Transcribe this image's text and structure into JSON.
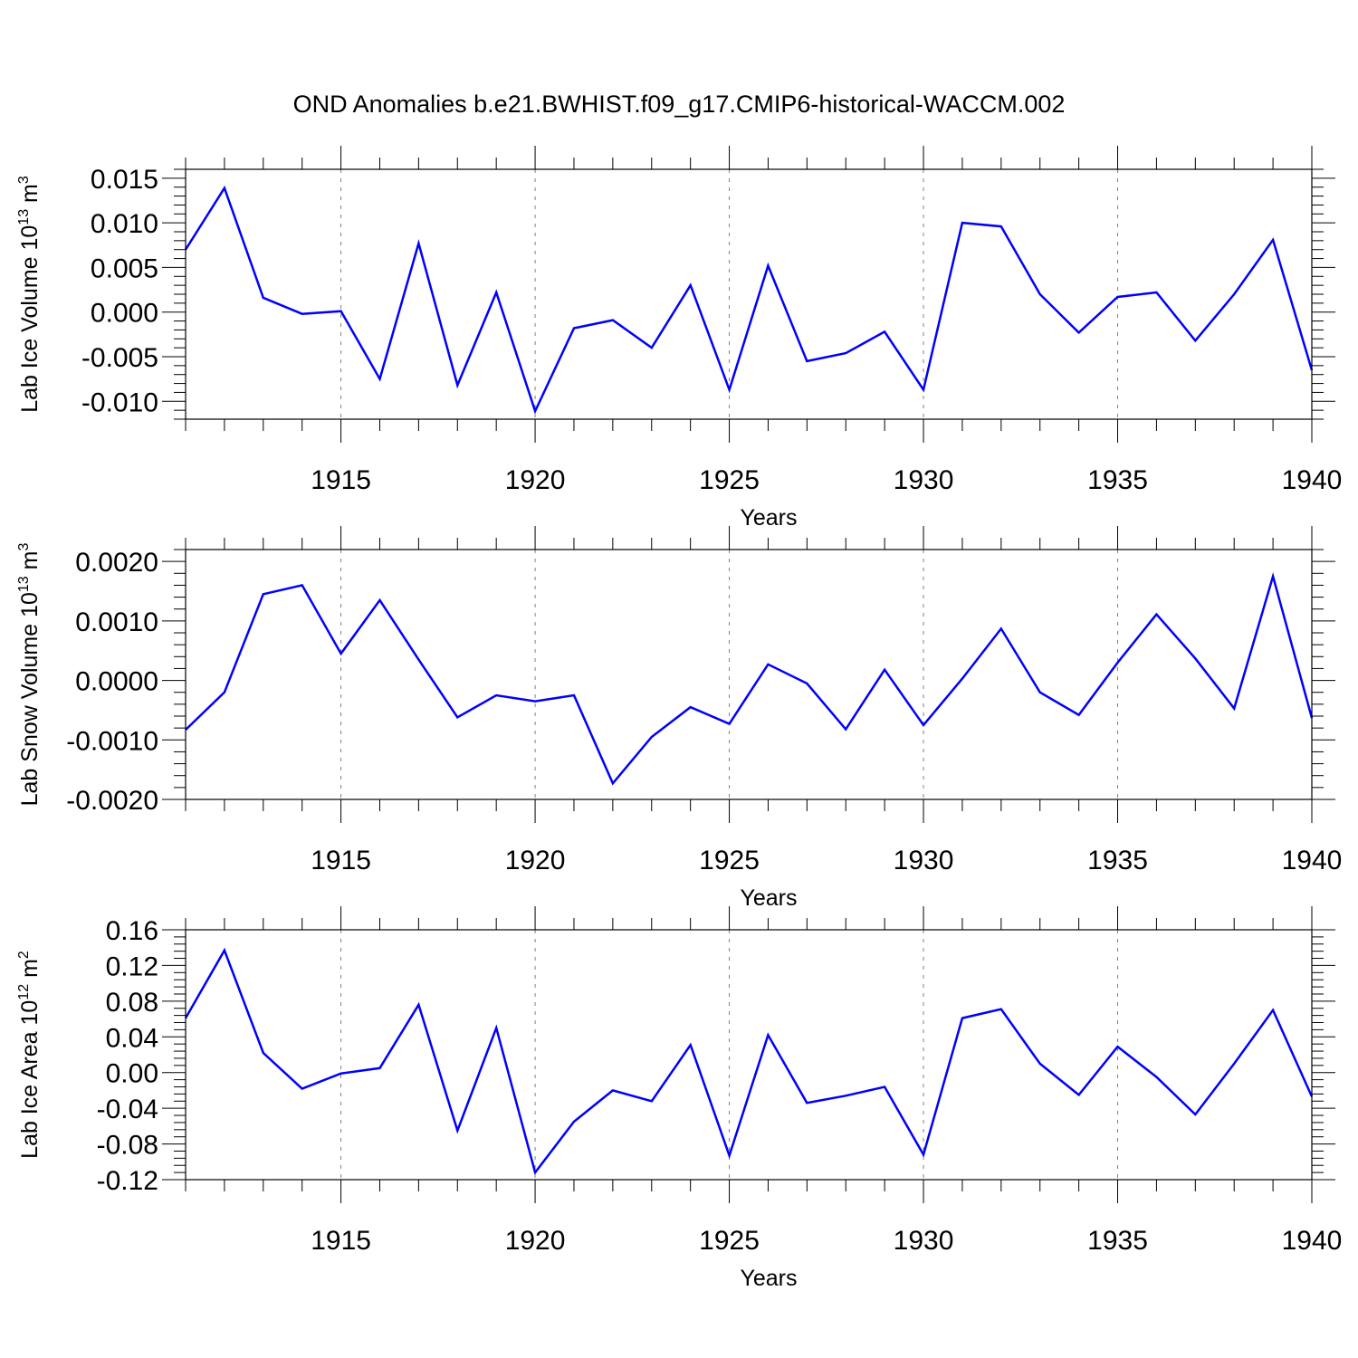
{
  "title": "OND Anomalies b.e21.BWHIST.f09_g17.CMIP6-historical-WACCM.002",
  "colors": {
    "series": "#0000ff",
    "axes": "#000000",
    "grid": "#808080"
  },
  "chart_data": [
    {
      "type": "line",
      "title": "OND Anomalies b.e21.BWHIST.f09_g17.CMIP6-historical-WACCM.002",
      "xlabel": "Years",
      "ylabel": {
        "text": "Lab Ice Volume 10",
        "exp": "13",
        "unit": " m",
        "unit_exp": "3"
      },
      "xlim": [
        1911,
        1940
      ],
      "ylim": [
        -0.012,
        0.016
      ],
      "xticks": [
        1915,
        1920,
        1925,
        1930,
        1935,
        1940
      ],
      "xtick_labels": [
        "1915",
        "1920",
        "1925",
        "1930",
        "1935",
        "1940"
      ],
      "yticks": [
        -0.01,
        -0.005,
        0.0,
        0.005,
        0.01,
        0.015
      ],
      "ytick_labels": [
        "-0.010",
        "-0.005",
        "0.000",
        "0.005",
        "0.010",
        "0.015"
      ],
      "grid": "x dashed",
      "x": [
        1911,
        1912,
        1913,
        1914,
        1915,
        1916,
        1917,
        1918,
        1919,
        1920,
        1921,
        1922,
        1923,
        1924,
        1925,
        1926,
        1927,
        1928,
        1929,
        1930,
        1931,
        1932,
        1933,
        1934,
        1935,
        1936,
        1937,
        1938,
        1939,
        1940
      ],
      "y": [
        0.007,
        0.0139,
        0.0016,
        -0.0002,
        0.0001,
        -0.0075,
        0.0077,
        -0.0082,
        0.0022,
        -0.0111,
        -0.0018,
        -0.0009,
        -0.004,
        0.003,
        -0.0087,
        0.0052,
        -0.0055,
        -0.0046,
        -0.0022,
        -0.0087,
        0.01,
        0.0096,
        0.002,
        -0.0023,
        0.0017,
        0.0022,
        -0.0032,
        0.002,
        0.0081,
        -0.0065
      ]
    },
    {
      "type": "line",
      "xlabel": "Years",
      "ylabel": {
        "text": "Lab Snow Volume 10",
        "exp": "13",
        "unit": " m",
        "unit_exp": "3"
      },
      "xlim": [
        1911,
        1940
      ],
      "ylim": [
        -0.002,
        0.0022
      ],
      "xticks": [
        1915,
        1920,
        1925,
        1930,
        1935,
        1940
      ],
      "xtick_labels": [
        "1915",
        "1920",
        "1925",
        "1930",
        "1935",
        "1940"
      ],
      "yticks": [
        -0.002,
        -0.001,
        0.0,
        0.001,
        0.002
      ],
      "ytick_labels": [
        "-0.0020",
        "-0.0010",
        "0.0000",
        "0.0010",
        "0.0020"
      ],
      "grid": "x dashed",
      "x": [
        1911,
        1912,
        1913,
        1914,
        1915,
        1916,
        1917,
        1918,
        1919,
        1920,
        1921,
        1922,
        1923,
        1924,
        1925,
        1926,
        1927,
        1928,
        1929,
        1930,
        1931,
        1932,
        1933,
        1934,
        1935,
        1936,
        1937,
        1938,
        1939,
        1940
      ],
      "y": [
        -0.00083,
        -0.0002,
        0.00145,
        0.0016,
        0.00045,
        0.00135,
        0.00035,
        -0.00062,
        -0.00025,
        -0.00035,
        -0.00025,
        -0.00173,
        -0.00095,
        -0.00045,
        -0.00073,
        0.00027,
        -5e-05,
        -0.00082,
        0.00018,
        -0.00075,
        3e-05,
        0.00087,
        -0.0002,
        -0.00058,
        0.0003,
        0.00111,
        0.00037,
        -0.00047,
        0.00175,
        -0.00063
      ]
    },
    {
      "type": "line",
      "xlabel": "Years",
      "ylabel": {
        "text": "Lab Ice Area 10",
        "exp": "12",
        "unit": " m",
        "unit_exp": "2"
      },
      "xlim": [
        1911,
        1940
      ],
      "ylim": [
        -0.12,
        0.16
      ],
      "xticks": [
        1915,
        1920,
        1925,
        1930,
        1935,
        1940
      ],
      "xtick_labels": [
        "1915",
        "1920",
        "1925",
        "1930",
        "1935",
        "1940"
      ],
      "yticks": [
        -0.12,
        -0.08,
        -0.04,
        0.0,
        0.04,
        0.08,
        0.12,
        0.16
      ],
      "ytick_labels": [
        "-0.12",
        "-0.08",
        "-0.04",
        "0.00",
        "0.04",
        "0.08",
        "0.12",
        "0.16"
      ],
      "grid": "x dashed",
      "x": [
        1911,
        1912,
        1913,
        1914,
        1915,
        1916,
        1917,
        1918,
        1919,
        1920,
        1921,
        1922,
        1923,
        1924,
        1925,
        1926,
        1927,
        1928,
        1929,
        1930,
        1931,
        1932,
        1933,
        1934,
        1935,
        1936,
        1937,
        1938,
        1939,
        1940
      ],
      "y": [
        0.061,
        0.137,
        0.022,
        -0.018,
        -0.001,
        0.005,
        0.076,
        -0.065,
        0.05,
        -0.112,
        -0.055,
        -0.02,
        -0.032,
        0.031,
        -0.093,
        0.042,
        -0.034,
        -0.026,
        -0.016,
        -0.092,
        0.061,
        0.071,
        0.01,
        -0.025,
        0.029,
        -0.005,
        -0.047,
        0.01,
        0.07,
        -0.027
      ]
    }
  ]
}
